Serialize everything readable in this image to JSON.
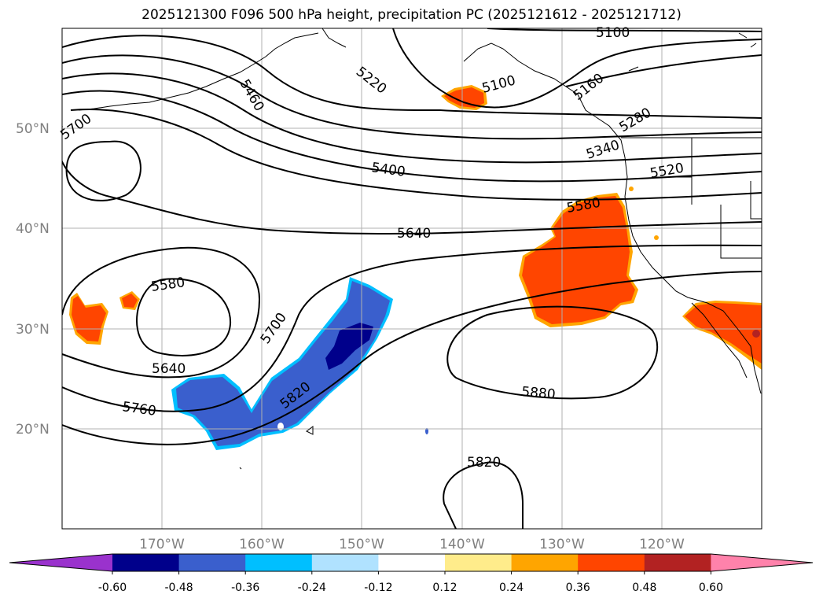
{
  "title": "2025121300 F096 500 hPa height, precipitation PC (2025121612 - 2025121712)",
  "lat_labels": [
    "50°N",
    "40°N",
    "30°N",
    "20°N"
  ],
  "lon_labels": [
    "170°W",
    "160°W",
    "150°W",
    "140°W",
    "130°W",
    "120°W"
  ],
  "contour_labels": [
    "5100",
    "5100",
    "5220",
    "5460",
    "5160",
    "5280",
    "5340",
    "5400",
    "5520",
    "5580",
    "5640",
    "5700",
    "5700",
    "5580",
    "5640",
    "5760",
    "5820",
    "5880",
    "5820"
  ],
  "colorbar": {
    "ticks": [
      "-0.60",
      "-0.48",
      "-0.36",
      "-0.24",
      "-0.12",
      "0.12",
      "0.24",
      "0.36",
      "0.48",
      "0.60"
    ],
    "colors": [
      "#9a32cd",
      "#00008b",
      "#3a5fcd",
      "#00bfff",
      "#b0e2ff",
      "#ffffff",
      "#ffec8b",
      "#ffa500",
      "#ff4500",
      "#b22222",
      "#ff82ab"
    ]
  },
  "colors": {
    "positive_precip": "#ff4500",
    "positive_edge": "#ffa500",
    "negative_precip": "#3a5fcd",
    "negative_core": "#00008b",
    "negative_edge": "#00bfff"
  }
}
